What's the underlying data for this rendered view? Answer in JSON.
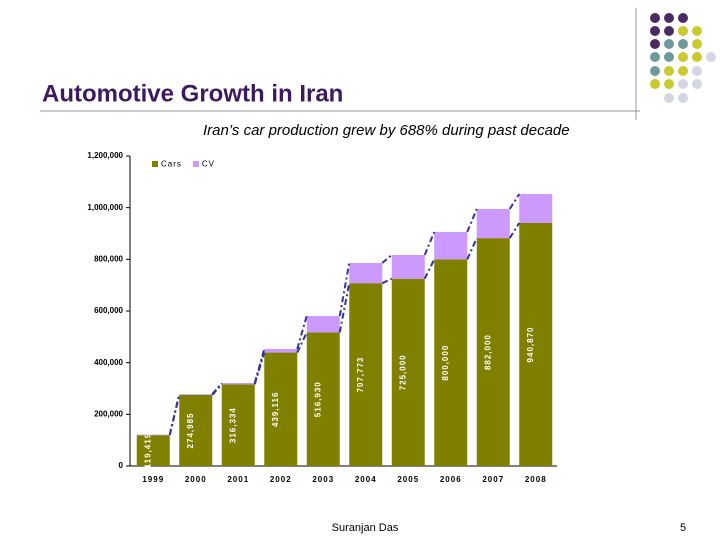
{
  "slide": {
    "title": "Automotive Growth in Iran",
    "subtitle": "Iran’s car production grew by 688% during past decade",
    "author": "Suranjan Das",
    "page": 5
  },
  "chart_data": {
    "type": "bar",
    "stacked": true,
    "categories": [
      "1999",
      "2000",
      "2001",
      "2002",
      "2003",
      "2004",
      "2005",
      "2006",
      "2007",
      "2008"
    ],
    "series": [
      {
        "name": "Cars",
        "color": "#808000",
        "values": [
          119419,
          274985,
          316334,
          439116,
          516930,
          707773,
          725000,
          800000,
          882000,
          940870
        ],
        "value_labels": [
          "119,419",
          "274,985",
          "316,334",
          "439,116",
          "516,930",
          "707,773",
          "725,000",
          "800,000",
          "882,000",
          "940,870"
        ]
      },
      {
        "name": "CV",
        "color": "#cc99ff",
        "values": [
          2000,
          3000,
          5000,
          14000,
          64000,
          78000,
          92000,
          106000,
          113000,
          112000
        ]
      }
    ],
    "ylim": [
      0,
      1200000
    ],
    "yticks": [
      0,
      {
        "value": 200000,
        "label": "200,000"
      },
      {
        "value": 400000,
        "label": "400,000"
      },
      {
        "value": 600000,
        "label": "600,000"
      },
      {
        "value": 800000,
        "label": "800,000"
      },
      {
        "value": 1000000,
        "label": "1,000,000"
      },
      {
        "value": 1200000,
        "label": "1,200,000"
      }
    ],
    "grid": false,
    "legend": "top-left",
    "connector_color": "#333399"
  }
}
